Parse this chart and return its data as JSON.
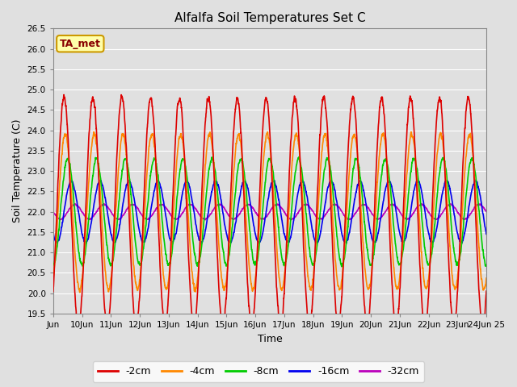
{
  "title": "Alfalfa Soil Temperatures Set C",
  "xlabel": "Time",
  "ylabel": "Soil Temperature (C)",
  "ylim": [
    19.5,
    26.5
  ],
  "background_color": "#e0e0e0",
  "plot_bg_color": "#e0e0e0",
  "grid_color": "white",
  "series_colors": {
    "-2cm": "#dd0000",
    "-4cm": "#ff8800",
    "-8cm": "#00cc00",
    "-16cm": "#0000ee",
    "-32cm": "#bb00bb"
  },
  "legend_labels": [
    "-2cm",
    "-4cm",
    "-8cm",
    "-16cm",
    "-32cm"
  ],
  "annotation_text": "TA_met",
  "annotation_bg": "#ffffaa",
  "annotation_border": "#cc9900",
  "x_tick_labels": [
    "Jun",
    "10Jun",
    "11Jun",
    "12Jun",
    "13Jun",
    "14Jun",
    "15Jun",
    "16Jun",
    "17Jun",
    "18Jun",
    "19Jun",
    "20Jun",
    "21Jun",
    "22Jun",
    "23Jun",
    "24Jun 25"
  ],
  "x_tick_positions": [
    0,
    24,
    48,
    72,
    96,
    120,
    144,
    168,
    192,
    216,
    240,
    264,
    288,
    312,
    336,
    360
  ],
  "yticks": [
    19.5,
    20.0,
    20.5,
    21.0,
    21.5,
    22.0,
    22.5,
    23.0,
    23.5,
    24.0,
    24.5,
    25.0,
    25.5,
    26.0,
    26.5
  ],
  "line_width": 1.2,
  "figsize": [
    6.4,
    4.8
  ],
  "dpi": 100
}
